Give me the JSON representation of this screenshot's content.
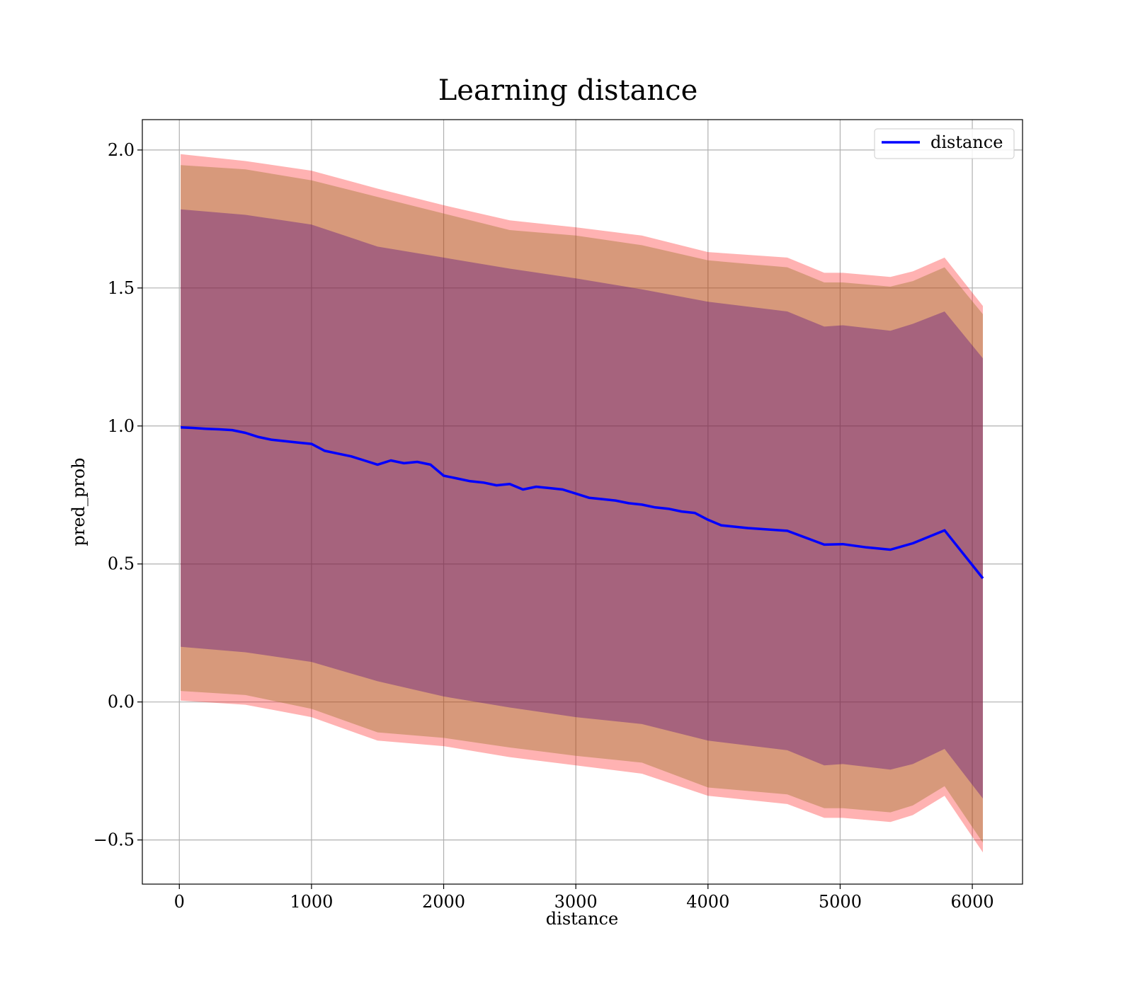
{
  "chart_data": {
    "type": "line",
    "title": "Learning distance",
    "xlabel": "distance",
    "ylabel": "pred_prob",
    "xlim": [
      -280,
      6380
    ],
    "ylim": [
      -0.66,
      2.11
    ],
    "grid": true,
    "legend_position": "top-right",
    "x_ticks": [
      0,
      1000,
      2000,
      3000,
      4000,
      5000,
      6000
    ],
    "x_tick_labels": [
      "0",
      "1000",
      "2000",
      "3000",
      "4000",
      "5000",
      "6000"
    ],
    "y_ticks": [
      -0.5,
      0.0,
      0.5,
      1.0,
      1.5,
      2.0
    ],
    "y_tick_labels": [
      "−0.5",
      "0.0",
      "0.5",
      "1.0",
      "1.5",
      "2.0"
    ],
    "series": [
      {
        "name": "distance",
        "color": "#0000ff",
        "x": [
          10,
          100,
          200,
          300,
          400,
          500,
          600,
          700,
          800,
          900,
          1000,
          1100,
          1200,
          1300,
          1400,
          1500,
          1600,
          1700,
          1800,
          1900,
          2000,
          2100,
          2200,
          2300,
          2400,
          2500,
          2600,
          2700,
          2800,
          2900,
          3000,
          3100,
          3200,
          3300,
          3400,
          3500,
          3600,
          3700,
          3800,
          3900,
          4000,
          4100,
          4300,
          4600,
          4880,
          5020,
          5200,
          5380,
          5550,
          5790,
          6080
        ],
        "values": [
          0.995,
          0.993,
          0.99,
          0.988,
          0.985,
          0.975,
          0.96,
          0.95,
          0.945,
          0.94,
          0.935,
          0.91,
          0.9,
          0.89,
          0.875,
          0.86,
          0.875,
          0.865,
          0.87,
          0.86,
          0.82,
          0.81,
          0.8,
          0.795,
          0.785,
          0.79,
          0.77,
          0.78,
          0.775,
          0.77,
          0.755,
          0.74,
          0.735,
          0.73,
          0.72,
          0.715,
          0.705,
          0.7,
          0.69,
          0.685,
          0.66,
          0.64,
          0.63,
          0.62,
          0.57,
          0.572,
          0.56,
          0.552,
          0.575,
          0.622,
          0.448
        ]
      }
    ],
    "bands": [
      {
        "color": "#ff0000",
        "opacity": 0.3,
        "x": [
          10,
          500,
          1000,
          1500,
          2000,
          2500,
          3000,
          3500,
          4000,
          4600,
          4880,
          5020,
          5380,
          5550,
          5790,
          6080
        ],
        "upper": [
          1.985,
          1.96,
          1.925,
          1.86,
          1.8,
          1.745,
          1.72,
          1.69,
          1.63,
          1.61,
          1.555,
          1.555,
          1.54,
          1.56,
          1.61,
          1.435
        ],
        "lower": [
          0.005,
          -0.01,
          -0.055,
          -0.14,
          -0.16,
          -0.2,
          -0.23,
          -0.26,
          -0.34,
          -0.37,
          -0.42,
          -0.42,
          -0.435,
          -0.41,
          -0.34,
          -0.545
        ]
      },
      {
        "color": "#8b6914",
        "opacity": 0.35,
        "x": [
          10,
          500,
          1000,
          1500,
          2000,
          2500,
          3000,
          3500,
          4000,
          4600,
          4880,
          5020,
          5380,
          5550,
          5790,
          6080
        ],
        "upper": [
          1.945,
          1.93,
          1.89,
          1.83,
          1.77,
          1.71,
          1.69,
          1.655,
          1.6,
          1.575,
          1.52,
          1.52,
          1.505,
          1.525,
          1.575,
          1.405
        ],
        "lower": [
          0.04,
          0.025,
          -0.025,
          -0.11,
          -0.13,
          -0.165,
          -0.195,
          -0.22,
          -0.31,
          -0.335,
          -0.385,
          -0.385,
          -0.4,
          -0.375,
          -0.305,
          -0.51
        ]
      },
      {
        "color": "#4b0082",
        "opacity": 0.35,
        "x": [
          10,
          500,
          1000,
          1500,
          2000,
          2500,
          3000,
          3500,
          4000,
          4600,
          4880,
          5020,
          5380,
          5550,
          5790,
          6080
        ],
        "upper": [
          1.785,
          1.765,
          1.73,
          1.65,
          1.61,
          1.57,
          1.535,
          1.495,
          1.45,
          1.415,
          1.36,
          1.365,
          1.345,
          1.37,
          1.415,
          1.245
        ],
        "lower": [
          0.2,
          0.18,
          0.145,
          0.075,
          0.02,
          -0.02,
          -0.055,
          -0.08,
          -0.14,
          -0.175,
          -0.23,
          -0.225,
          -0.245,
          -0.225,
          -0.17,
          -0.35
        ]
      }
    ]
  }
}
